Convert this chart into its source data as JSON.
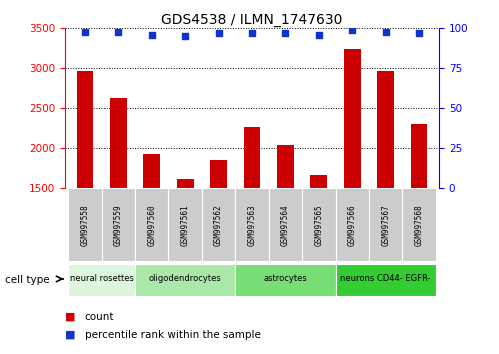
{
  "title": "GDS4538 / ILMN_1747630",
  "samples": [
    "GSM997558",
    "GSM997559",
    "GSM997560",
    "GSM997561",
    "GSM997562",
    "GSM997563",
    "GSM997564",
    "GSM997565",
    "GSM997566",
    "GSM997567",
    "GSM997568"
  ],
  "counts": [
    2960,
    2620,
    1920,
    1610,
    1850,
    2260,
    2040,
    1660,
    3240,
    2960,
    2300
  ],
  "percentile_ranks": [
    98,
    98,
    96,
    95,
    97,
    97,
    97,
    96,
    99,
    98,
    97
  ],
  "ylim_left": [
    1500,
    3500
  ],
  "ylim_right": [
    0,
    100
  ],
  "yticks_left": [
    1500,
    2000,
    2500,
    3000,
    3500
  ],
  "yticks_right": [
    0,
    25,
    50,
    75,
    100
  ],
  "bar_color": "#cc0000",
  "dot_color": "#1133cc",
  "bg_color": "#ffffff",
  "grid_color": "#000000",
  "cell_type_groups": [
    {
      "label": "neural rosettes",
      "start": 0,
      "end": 2,
      "color": "#ddf5dd"
    },
    {
      "label": "oligodendrocytes",
      "start": 2,
      "end": 5,
      "color": "#aae8aa"
    },
    {
      "label": "astrocytes",
      "start": 5,
      "end": 8,
      "color": "#77dd77"
    },
    {
      "label": "neurons CD44- EGFR-",
      "start": 8,
      "end": 11,
      "color": "#33cc33"
    }
  ],
  "cell_type_label": "cell type",
  "legend_count_label": "count",
  "legend_percentile_label": "percentile rank within the sample",
  "sample_box_color": "#cccccc",
  "bar_width": 0.5,
  "title_fontsize": 10
}
